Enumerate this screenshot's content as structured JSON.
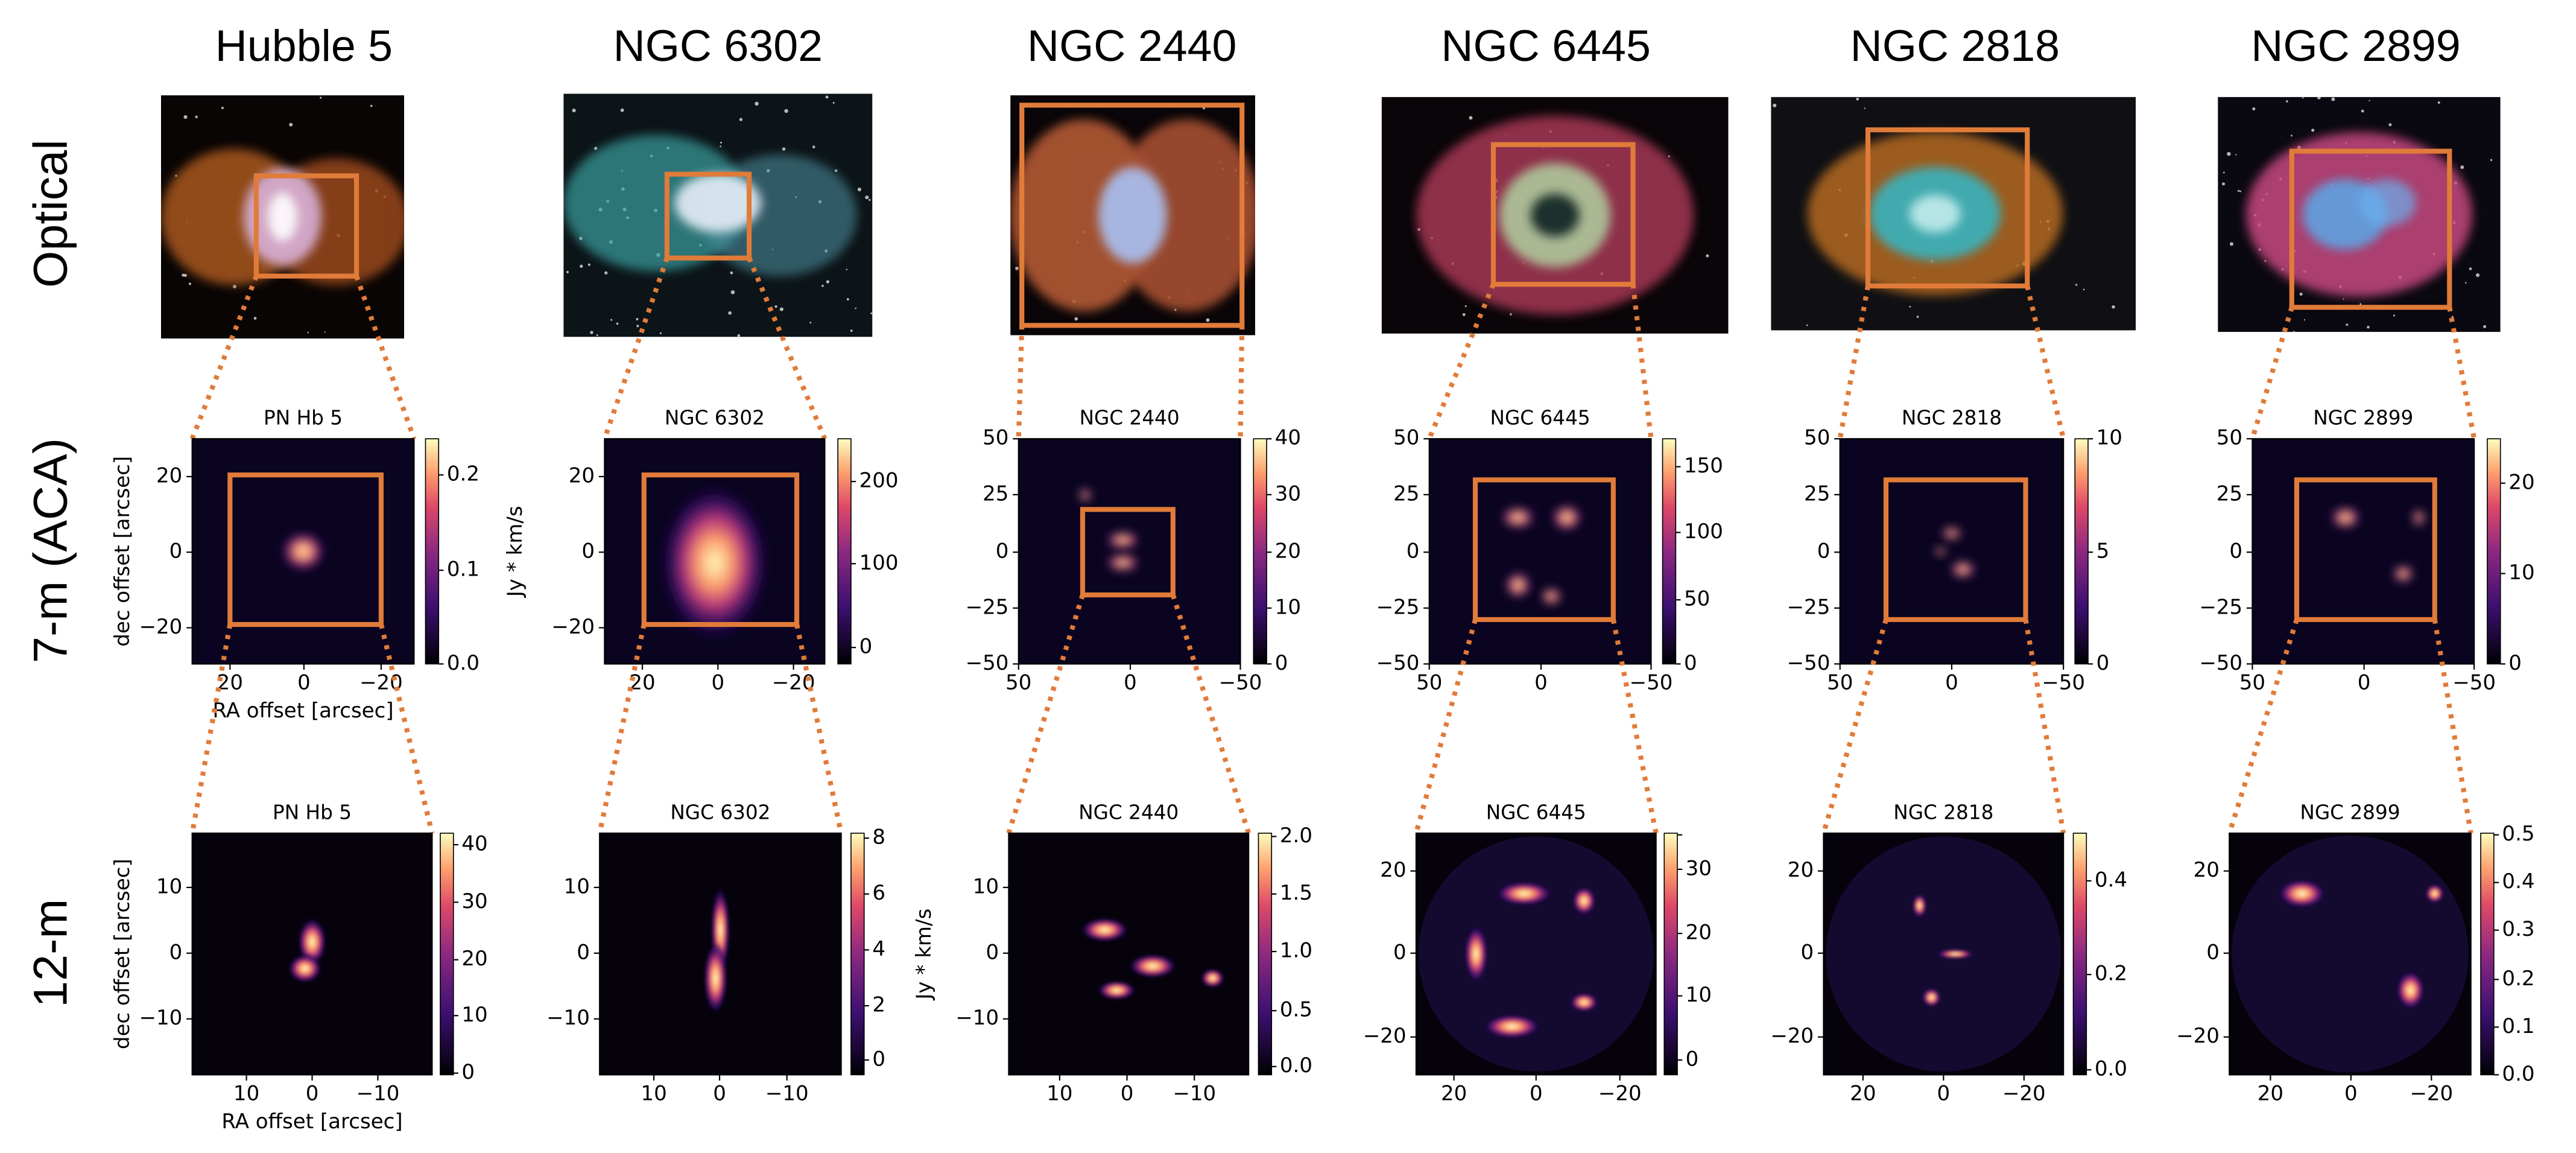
{
  "row_labels": [
    "Optical",
    "7-m (ACA)",
    "12-m"
  ],
  "axis_labels": {
    "x": "RA offset [arcsec]",
    "y": "dec offset [arcsec]",
    "colorbar": "Jy * km/s"
  },
  "columns": [
    {
      "name": "Hubble 5",
      "aca": {
        "title": "PN Hb 5",
        "xticks": [
          "20",
          "0",
          "−20"
        ],
        "yticks": [
          "20",
          "0",
          "−20"
        ],
        "cbar_ticks": [
          "0.0",
          "0.1",
          "0.2"
        ]
      },
      "m12": {
        "title": "PN Hb 5",
        "xticks": [
          "10",
          "0",
          "−10"
        ],
        "yticks": [
          "10",
          "0",
          "−10"
        ],
        "cbar_ticks": [
          "0",
          "10",
          "20",
          "30",
          "40"
        ]
      }
    },
    {
      "name": "NGC 6302",
      "aca": {
        "title": "NGC 6302",
        "xticks": [
          "20",
          "0",
          "−20"
        ],
        "yticks": [
          "20",
          "0",
          "−20"
        ],
        "cbar_ticks": [
          "0",
          "100",
          "200"
        ]
      },
      "m12": {
        "title": "NGC 6302",
        "xticks": [
          "10",
          "0",
          "−10"
        ],
        "yticks": [
          "10",
          "0",
          "−10"
        ],
        "cbar_ticks": [
          "0",
          "2",
          "4",
          "6",
          "8"
        ]
      }
    },
    {
      "name": "NGC 2440",
      "aca": {
        "title": "NGC 2440",
        "xticks": [
          "50",
          "0",
          "−50"
        ],
        "yticks": [
          "50",
          "25",
          "0",
          "−25",
          "−50"
        ],
        "cbar_ticks": [
          "0",
          "10",
          "20",
          "30",
          "40"
        ]
      },
      "m12": {
        "title": "NGC 2440",
        "xticks": [
          "10",
          "0",
          "−10"
        ],
        "yticks": [
          "10",
          "0",
          "−10"
        ],
        "cbar_ticks": [
          "0.0",
          "0.5",
          "1.0",
          "1.5",
          "2.0"
        ]
      }
    },
    {
      "name": "NGC 6445",
      "aca": {
        "title": "NGC 6445",
        "xticks": [
          "50",
          "0",
          "−50"
        ],
        "yticks": [
          "50",
          "25",
          "0",
          "−25",
          "−50"
        ],
        "cbar_ticks": [
          "0",
          "50",
          "100",
          "150"
        ]
      },
      "m12": {
        "title": "NGC 6445",
        "xticks": [
          "20",
          "0",
          "−20"
        ],
        "yticks": [
          "20",
          "0",
          "−20"
        ],
        "cbar_ticks": [
          "0",
          "10",
          "20",
          "30"
        ]
      }
    },
    {
      "name": "NGC 2818",
      "aca": {
        "title": "NGC 2818",
        "xticks": [
          "50",
          "0",
          "−50"
        ],
        "yticks": [
          "50",
          "25",
          "0",
          "−25",
          "−50"
        ],
        "cbar_ticks": [
          "0",
          "5",
          "10"
        ]
      },
      "m12": {
        "title": "NGC 2818",
        "xticks": [
          "20",
          "0",
          "−20"
        ],
        "yticks": [
          "20",
          "0",
          "−20"
        ],
        "cbar_ticks": [
          "0.0",
          "0.2",
          "0.4"
        ]
      }
    },
    {
      "name": "NGC 2899",
      "aca": {
        "title": "NGC 2899",
        "xticks": [
          "50",
          "0",
          "−50"
        ],
        "yticks": [
          "50",
          "25",
          "0",
          "−25",
          "−50"
        ],
        "cbar_ticks": [
          "0",
          "10",
          "20"
        ]
      },
      "m12": {
        "title": "NGC 2899",
        "xticks": [
          "20",
          "0",
          "−20"
        ],
        "yticks": [
          "20",
          "0",
          "−20"
        ],
        "cbar_ticks": [
          "0.0",
          "0.1",
          "0.2",
          "0.3",
          "0.4",
          "0.5"
        ]
      }
    }
  ]
}
